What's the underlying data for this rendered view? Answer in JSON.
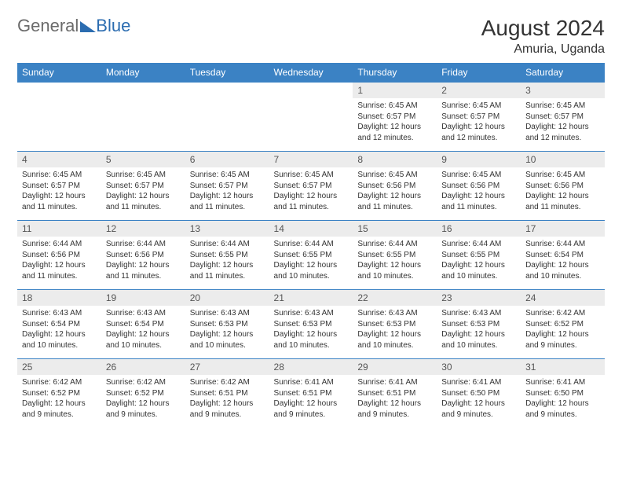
{
  "brand": {
    "word1": "General",
    "word2": "Blue",
    "word1_color": "#6b6b6b",
    "word2_color": "#2b6cb0",
    "icon_color": "#2b6cb0"
  },
  "title": "August 2024",
  "location": "Amuria, Uganda",
  "header_bg": "#3b82c4",
  "header_fg": "#ffffff",
  "daynum_bg": "#ececec",
  "border_color": "#3b82c4",
  "weekdays": [
    "Sunday",
    "Monday",
    "Tuesday",
    "Wednesday",
    "Thursday",
    "Friday",
    "Saturday"
  ],
  "weeks": [
    [
      {
        "n": "",
        "lines": []
      },
      {
        "n": "",
        "lines": []
      },
      {
        "n": "",
        "lines": []
      },
      {
        "n": "",
        "lines": []
      },
      {
        "n": "1",
        "lines": [
          "Sunrise: 6:45 AM",
          "Sunset: 6:57 PM",
          "Daylight: 12 hours and 12 minutes."
        ]
      },
      {
        "n": "2",
        "lines": [
          "Sunrise: 6:45 AM",
          "Sunset: 6:57 PM",
          "Daylight: 12 hours and 12 minutes."
        ]
      },
      {
        "n": "3",
        "lines": [
          "Sunrise: 6:45 AM",
          "Sunset: 6:57 PM",
          "Daylight: 12 hours and 12 minutes."
        ]
      }
    ],
    [
      {
        "n": "4",
        "lines": [
          "Sunrise: 6:45 AM",
          "Sunset: 6:57 PM",
          "Daylight: 12 hours and 11 minutes."
        ]
      },
      {
        "n": "5",
        "lines": [
          "Sunrise: 6:45 AM",
          "Sunset: 6:57 PM",
          "Daylight: 12 hours and 11 minutes."
        ]
      },
      {
        "n": "6",
        "lines": [
          "Sunrise: 6:45 AM",
          "Sunset: 6:57 PM",
          "Daylight: 12 hours and 11 minutes."
        ]
      },
      {
        "n": "7",
        "lines": [
          "Sunrise: 6:45 AM",
          "Sunset: 6:57 PM",
          "Daylight: 12 hours and 11 minutes."
        ]
      },
      {
        "n": "8",
        "lines": [
          "Sunrise: 6:45 AM",
          "Sunset: 6:56 PM",
          "Daylight: 12 hours and 11 minutes."
        ]
      },
      {
        "n": "9",
        "lines": [
          "Sunrise: 6:45 AM",
          "Sunset: 6:56 PM",
          "Daylight: 12 hours and 11 minutes."
        ]
      },
      {
        "n": "10",
        "lines": [
          "Sunrise: 6:45 AM",
          "Sunset: 6:56 PM",
          "Daylight: 12 hours and 11 minutes."
        ]
      }
    ],
    [
      {
        "n": "11",
        "lines": [
          "Sunrise: 6:44 AM",
          "Sunset: 6:56 PM",
          "Daylight: 12 hours and 11 minutes."
        ]
      },
      {
        "n": "12",
        "lines": [
          "Sunrise: 6:44 AM",
          "Sunset: 6:56 PM",
          "Daylight: 12 hours and 11 minutes."
        ]
      },
      {
        "n": "13",
        "lines": [
          "Sunrise: 6:44 AM",
          "Sunset: 6:55 PM",
          "Daylight: 12 hours and 11 minutes."
        ]
      },
      {
        "n": "14",
        "lines": [
          "Sunrise: 6:44 AM",
          "Sunset: 6:55 PM",
          "Daylight: 12 hours and 10 minutes."
        ]
      },
      {
        "n": "15",
        "lines": [
          "Sunrise: 6:44 AM",
          "Sunset: 6:55 PM",
          "Daylight: 12 hours and 10 minutes."
        ]
      },
      {
        "n": "16",
        "lines": [
          "Sunrise: 6:44 AM",
          "Sunset: 6:55 PM",
          "Daylight: 12 hours and 10 minutes."
        ]
      },
      {
        "n": "17",
        "lines": [
          "Sunrise: 6:44 AM",
          "Sunset: 6:54 PM",
          "Daylight: 12 hours and 10 minutes."
        ]
      }
    ],
    [
      {
        "n": "18",
        "lines": [
          "Sunrise: 6:43 AM",
          "Sunset: 6:54 PM",
          "Daylight: 12 hours and 10 minutes."
        ]
      },
      {
        "n": "19",
        "lines": [
          "Sunrise: 6:43 AM",
          "Sunset: 6:54 PM",
          "Daylight: 12 hours and 10 minutes."
        ]
      },
      {
        "n": "20",
        "lines": [
          "Sunrise: 6:43 AM",
          "Sunset: 6:53 PM",
          "Daylight: 12 hours and 10 minutes."
        ]
      },
      {
        "n": "21",
        "lines": [
          "Sunrise: 6:43 AM",
          "Sunset: 6:53 PM",
          "Daylight: 12 hours and 10 minutes."
        ]
      },
      {
        "n": "22",
        "lines": [
          "Sunrise: 6:43 AM",
          "Sunset: 6:53 PM",
          "Daylight: 12 hours and 10 minutes."
        ]
      },
      {
        "n": "23",
        "lines": [
          "Sunrise: 6:43 AM",
          "Sunset: 6:53 PM",
          "Daylight: 12 hours and 10 minutes."
        ]
      },
      {
        "n": "24",
        "lines": [
          "Sunrise: 6:42 AM",
          "Sunset: 6:52 PM",
          "Daylight: 12 hours and 9 minutes."
        ]
      }
    ],
    [
      {
        "n": "25",
        "lines": [
          "Sunrise: 6:42 AM",
          "Sunset: 6:52 PM",
          "Daylight: 12 hours and 9 minutes."
        ]
      },
      {
        "n": "26",
        "lines": [
          "Sunrise: 6:42 AM",
          "Sunset: 6:52 PM",
          "Daylight: 12 hours and 9 minutes."
        ]
      },
      {
        "n": "27",
        "lines": [
          "Sunrise: 6:42 AM",
          "Sunset: 6:51 PM",
          "Daylight: 12 hours and 9 minutes."
        ]
      },
      {
        "n": "28",
        "lines": [
          "Sunrise: 6:41 AM",
          "Sunset: 6:51 PM",
          "Daylight: 12 hours and 9 minutes."
        ]
      },
      {
        "n": "29",
        "lines": [
          "Sunrise: 6:41 AM",
          "Sunset: 6:51 PM",
          "Daylight: 12 hours and 9 minutes."
        ]
      },
      {
        "n": "30",
        "lines": [
          "Sunrise: 6:41 AM",
          "Sunset: 6:50 PM",
          "Daylight: 12 hours and 9 minutes."
        ]
      },
      {
        "n": "31",
        "lines": [
          "Sunrise: 6:41 AM",
          "Sunset: 6:50 PM",
          "Daylight: 12 hours and 9 minutes."
        ]
      }
    ]
  ]
}
